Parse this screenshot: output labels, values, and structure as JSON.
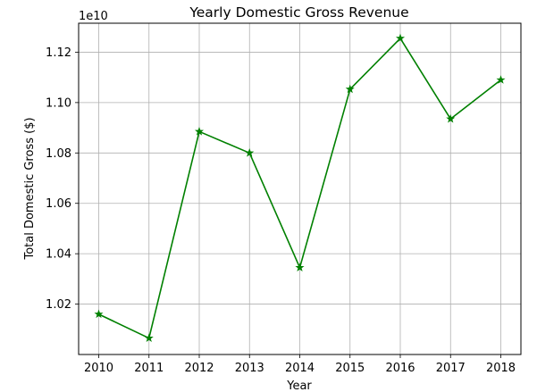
{
  "chart_data": {
    "type": "line",
    "title": "Yearly Domestic Gross Revenue",
    "xlabel": "Year",
    "ylabel": "Total Domestic Gross ($)",
    "y_offset_label": "1e10",
    "y_scale_factor": 10000000000,
    "x": [
      2010,
      2011,
      2012,
      2013,
      2014,
      2015,
      2016,
      2017,
      2018
    ],
    "x_tick_labels": [
      "2010",
      "2011",
      "2012",
      "2013",
      "2014",
      "2015",
      "2016",
      "2017",
      "2018"
    ],
    "y_ticks": [
      1.02,
      1.04,
      1.06,
      1.08,
      1.1,
      1.12
    ],
    "y_tick_labels": [
      "1.02",
      "1.04",
      "1.06",
      "1.08",
      "1.10",
      "1.12"
    ],
    "xlim": [
      2009.6,
      2018.4
    ],
    "ylim": [
      1.0,
      1.1315
    ],
    "grid": true,
    "series": [
      {
        "color": "#008000",
        "marker": "star",
        "values": [
          10160000000,
          10065000000,
          10885000000,
          10800000000,
          10345000000,
          11053000000,
          11255000000,
          10935000000,
          11090000000
        ]
      }
    ]
  }
}
